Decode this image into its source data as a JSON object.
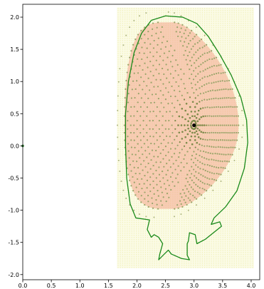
{
  "chart_data": {
    "type": "scatter",
    "title": "",
    "xlabel": "",
    "ylabel": "",
    "xlim": [
      0.0,
      4.15
    ],
    "ylim": [
      -2.08,
      2.2
    ],
    "grid": false,
    "legend": "none",
    "x_ticks": [
      "0.0",
      "0.5",
      "1.0",
      "1.5",
      "2.0",
      "2.5",
      "3.0",
      "3.5",
      "4.0"
    ],
    "x_tick_values": [
      0.0,
      0.5,
      1.0,
      1.5,
      2.0,
      2.5,
      3.0,
      3.5,
      4.0
    ],
    "y_ticks": [
      "2.0",
      "1.5",
      "1.0",
      "0.5",
      "0.0",
      "-0.5",
      "-1.0",
      "-1.5",
      "-2.0"
    ],
    "y_tick_values": [
      2.0,
      1.5,
      1.0,
      0.5,
      0.0,
      -0.5,
      -1.0,
      -1.5,
      -2.0
    ],
    "background_grid": {
      "x_range": [
        1.65,
        4.05
      ],
      "y_range": [
        -1.9,
        2.15
      ],
      "color": "#e8e89a"
    },
    "magnetic_axis": {
      "r": 3.0,
      "z": 0.32,
      "color": "#000000"
    },
    "origin_marker": {
      "r": 0.0,
      "z": 0.0,
      "color": "#2e7d32"
    },
    "flux_surfaces": {
      "count": 22,
      "center": [
        3.0,
        0.32
      ],
      "outer_inner_radius": 1.22,
      "outer_outer_radius": 0.78,
      "outer_upper_height": 1.6,
      "outer_lower_height": 1.3,
      "triangularity": 0.5,
      "inner_fill_color": "#f4a58a",
      "point_color": "#9aa46a",
      "core_line_color": "#7d8a4a"
    },
    "limiter_boundary": {
      "color": "#1a8a1a",
      "points": [
        [
          2.25,
          1.95
        ],
        [
          2.5,
          2.02
        ],
        [
          2.8,
          2.0
        ],
        [
          3.05,
          1.9
        ],
        [
          3.25,
          1.7
        ],
        [
          3.45,
          1.42
        ],
        [
          3.65,
          1.1
        ],
        [
          3.82,
          0.75
        ],
        [
          3.92,
          0.4
        ],
        [
          3.94,
          0.05
        ],
        [
          3.88,
          -0.35
        ],
        [
          3.75,
          -0.7
        ],
        [
          3.55,
          -0.95
        ],
        [
          3.35,
          -1.12
        ],
        [
          3.3,
          -1.22
        ],
        [
          3.45,
          -1.18
        ],
        [
          3.48,
          -1.25
        ],
        [
          3.2,
          -1.45
        ],
        [
          3.05,
          -1.52
        ],
        [
          3.02,
          -1.38
        ],
        [
          2.92,
          -1.35
        ],
        [
          2.9,
          -1.48
        ],
        [
          2.88,
          -1.52
        ],
        [
          2.88,
          -1.7
        ],
        [
          2.92,
          -1.77
        ],
        [
          2.78,
          -1.75
        ],
        [
          2.6,
          -1.68
        ],
        [
          2.55,
          -1.62
        ],
        [
          2.48,
          -1.68
        ],
        [
          2.38,
          -1.77
        ],
        [
          2.4,
          -1.68
        ],
        [
          2.45,
          -1.52
        ],
        [
          2.38,
          -1.42
        ],
        [
          2.3,
          -1.38
        ],
        [
          2.25,
          -1.42
        ],
        [
          2.18,
          -1.3
        ],
        [
          2.22,
          -1.15
        ],
        [
          1.98,
          -1.12
        ],
        [
          1.88,
          -0.9
        ],
        [
          1.82,
          -0.5
        ],
        [
          1.8,
          0.0
        ],
        [
          1.8,
          0.5
        ],
        [
          1.85,
          1.0
        ],
        [
          1.95,
          1.45
        ],
        [
          2.08,
          1.75
        ],
        [
          2.25,
          1.95
        ]
      ]
    }
  }
}
